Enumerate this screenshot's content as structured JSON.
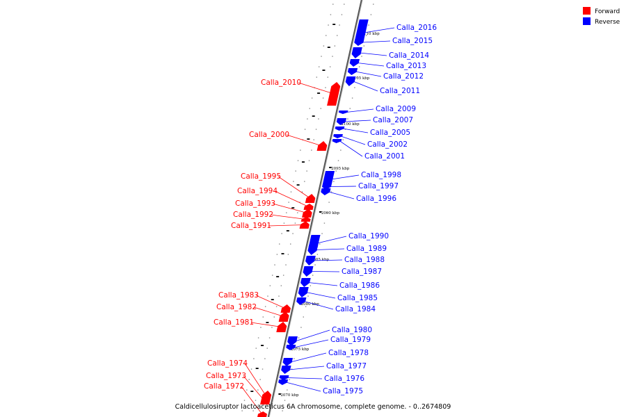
{
  "caption": "Caldicellulosiruptor lactoaceticus 6A chromosome, complete genome. - 0..2674809",
  "legend": [
    {
      "label": "Forward",
      "color": "#ff0000"
    },
    {
      "label": "Reverse",
      "color": "#0000ff"
    }
  ],
  "ticks": [
    "2110 kbp",
    "2105 kbp",
    "2100 kbp",
    "2095 kbp",
    "2090 kbp",
    "2085 kbp",
    "2080 kbp",
    "2075 kbp",
    "2070 kbp"
  ],
  "genes": [
    {
      "name": "Calla_2016",
      "strand": "reverse"
    },
    {
      "name": "Calla_2015",
      "strand": "reverse"
    },
    {
      "name": "Calla_2014",
      "strand": "reverse"
    },
    {
      "name": "Calla_2013",
      "strand": "reverse"
    },
    {
      "name": "Calla_2012",
      "strand": "reverse"
    },
    {
      "name": "Calla_2011",
      "strand": "reverse"
    },
    {
      "name": "Calla_2010",
      "strand": "forward"
    },
    {
      "name": "Calla_2009",
      "strand": "reverse"
    },
    {
      "name": "Calla_2007",
      "strand": "reverse"
    },
    {
      "name": "Calla_2005",
      "strand": "reverse"
    },
    {
      "name": "Calla_2002",
      "strand": "reverse"
    },
    {
      "name": "Calla_2001",
      "strand": "reverse"
    },
    {
      "name": "Calla_2000",
      "strand": "forward"
    },
    {
      "name": "Calla_1998",
      "strand": "reverse"
    },
    {
      "name": "Calla_1997",
      "strand": "reverse"
    },
    {
      "name": "Calla_1996",
      "strand": "reverse"
    },
    {
      "name": "Calla_1995",
      "strand": "forward"
    },
    {
      "name": "Calla_1994",
      "strand": "forward"
    },
    {
      "name": "Calla_1993",
      "strand": "forward"
    },
    {
      "name": "Calla_1992",
      "strand": "forward"
    },
    {
      "name": "Calla_1991",
      "strand": "forward"
    },
    {
      "name": "Calla_1990",
      "strand": "reverse"
    },
    {
      "name": "Calla_1989",
      "strand": "reverse"
    },
    {
      "name": "Calla_1988",
      "strand": "reverse"
    },
    {
      "name": "Calla_1987",
      "strand": "reverse"
    },
    {
      "name": "Calla_1986",
      "strand": "reverse"
    },
    {
      "name": "Calla_1985",
      "strand": "reverse"
    },
    {
      "name": "Calla_1984",
      "strand": "reverse"
    },
    {
      "name": "Calla_1983",
      "strand": "forward"
    },
    {
      "name": "Calla_1982",
      "strand": "forward"
    },
    {
      "name": "Calla_1981",
      "strand": "forward"
    },
    {
      "name": "Calla_1980",
      "strand": "reverse"
    },
    {
      "name": "Calla_1979",
      "strand": "reverse"
    },
    {
      "name": "Calla_1978",
      "strand": "reverse"
    },
    {
      "name": "Calla_1977",
      "strand": "reverse"
    },
    {
      "name": "Calla_1976",
      "strand": "reverse"
    },
    {
      "name": "Calla_1975",
      "strand": "reverse"
    },
    {
      "name": "Calla_1974",
      "strand": "forward"
    },
    {
      "name": "Calla_1973",
      "strand": "forward"
    },
    {
      "name": "Calla_1972",
      "strand": "forward"
    }
  ]
}
